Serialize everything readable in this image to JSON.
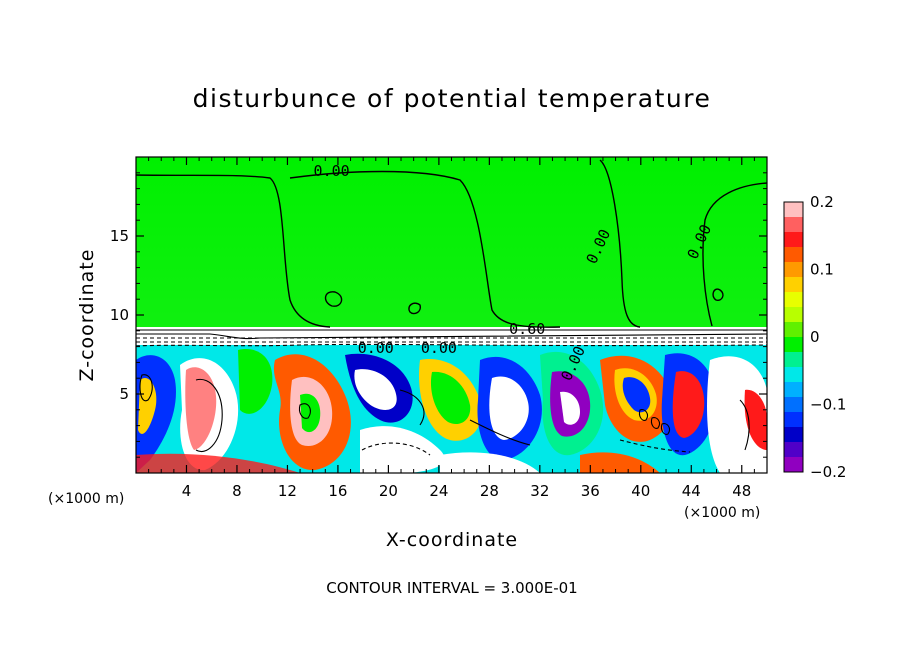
{
  "chart_data": {
    "type": "heatmap",
    "title": "disturbunce of potential temperature",
    "xlabel": "X-coordinate",
    "ylabel": "Z-coordinate",
    "x_unit": "(×1000 m)",
    "y_unit": "(×1000 m)",
    "xlim": [
      0,
      50
    ],
    "ylim": [
      0,
      20
    ],
    "x_ticks": [
      4,
      8,
      12,
      16,
      20,
      24,
      28,
      32,
      36,
      40,
      44,
      48
    ],
    "y_ticks": [
      5,
      10,
      15
    ],
    "colorbar": {
      "min": -0.2,
      "max": 0.2,
      "tick_values": [
        0.2,
        0.1,
        0,
        -0.1,
        -0.2
      ],
      "tick_labels": [
        "0.2",
        "0.1",
        "0",
        "−0.1",
        "−0.2"
      ],
      "colors": [
        "#ffc0c0",
        "#ff6060",
        "#ff1a1a",
        "#ff5a00",
        "#ff9a00",
        "#ffd000",
        "#e8ff00",
        "#b8ff00",
        "#60f000",
        "#00f000",
        "#00f090",
        "#00e8e8",
        "#00b0ff",
        "#0070ff",
        "#0030ff",
        "#0000c8",
        "#5000c8",
        "#9000c0"
      ]
    },
    "contour_labels": [
      {
        "text": "0.00",
        "x": 15.5,
        "z": 18.8
      },
      {
        "text": "0.00",
        "x": 37.0,
        "z": 14.2
      },
      {
        "text": "0.00",
        "x": 45.0,
        "z": 14.5
      },
      {
        "text": "0.60",
        "x": 31.0,
        "z": 8.8
      },
      {
        "text": "0.00",
        "x": 19.0,
        "z": 7.6
      },
      {
        "text": "0.00",
        "x": 24.0,
        "z": 7.6
      },
      {
        "text": "0.00",
        "x": 35.0,
        "z": 6.8
      }
    ],
    "footer": "CONTOUR INTERVAL = 3.000E-01"
  }
}
